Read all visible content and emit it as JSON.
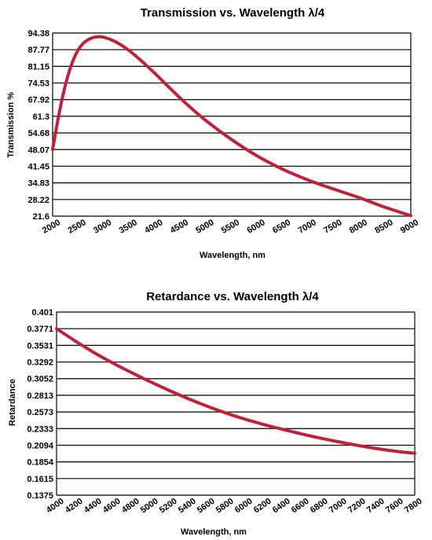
{
  "chart_data": [
    {
      "type": "line",
      "title": "Transmission vs. Wavelength λ/4",
      "xlabel": "Wavelength, nm",
      "ylabel": "Transmission %",
      "x_ticks": [
        "2000",
        "2500",
        "3000",
        "3500",
        "4000",
        "4500",
        "5000",
        "5500",
        "6000",
        "6500",
        "7000",
        "7500",
        "8000",
        "8500",
        "9000"
      ],
      "y_ticks": [
        "94.38",
        "87.77",
        "81.15",
        "74.53",
        "67.92",
        "61.3",
        "54.68",
        "48.07",
        "41.45",
        "34.83",
        "28.22",
        "21.6"
      ],
      "xlim": [
        2000,
        9000
      ],
      "ylim": [
        21.6,
        94.38
      ],
      "grid": "horizontal",
      "line_color": "#c0213a",
      "series": [
        {
          "x": [
            2000,
            2100,
            2200,
            2300,
            2400,
            2500,
            2600,
            2700,
            2800,
            2900,
            3000,
            3200,
            3400,
            3600,
            3800,
            4000,
            4300,
            4600,
            5000,
            5500,
            6000,
            6500,
            7000,
            7500,
            8000,
            8500,
            9000
          ],
          "values": [
            48.1,
            59.5,
            69.5,
            77.5,
            83.5,
            87.7,
            90.3,
            91.8,
            92.6,
            92.9,
            92.7,
            91.2,
            88.8,
            85.7,
            82.1,
            78.3,
            72.3,
            66.5,
            59.5,
            52.0,
            45.5,
            40.2,
            35.9,
            32.3,
            28.9,
            25.1,
            21.8
          ]
        }
      ]
    },
    {
      "type": "line",
      "title": "Retardance vs. Wavelength λ/4",
      "xlabel": "Wavelength, nm",
      "ylabel": "Retardance",
      "x_ticks": [
        "4000",
        "4200",
        "4400",
        "4600",
        "4800",
        "5000",
        "5200",
        "5400",
        "5600",
        "5800",
        "6000",
        "6200",
        "6400",
        "6600",
        "6800",
        "7000",
        "7200",
        "7400",
        "7600",
        "7800"
      ],
      "y_ticks": [
        "0.401",
        "0.3771",
        "0.3531",
        "0.3292",
        "0.3052",
        "0.2813",
        "0.2573",
        "0.2333",
        "0.2094",
        "0.1854",
        "0.1615",
        "0.1375"
      ],
      "xlim": [
        4000,
        7800
      ],
      "ylim": [
        0.1375,
        0.401
      ],
      "grid": "horizontal",
      "line_color": "#c0213a",
      "series": [
        {
          "x": [
            4000,
            4200,
            4400,
            4600,
            4800,
            5000,
            5200,
            5400,
            5600,
            5800,
            6000,
            6200,
            6400,
            6600,
            6800,
            7000,
            7200,
            7400,
            7600,
            7800
          ],
          "values": [
            0.3771,
            0.3592,
            0.3425,
            0.3274,
            0.3136,
            0.3004,
            0.2879,
            0.2762,
            0.2655,
            0.2556,
            0.2468,
            0.2391,
            0.2322,
            0.2257,
            0.2196,
            0.2141,
            0.209,
            0.2045,
            0.2007,
            0.1978
          ]
        }
      ]
    }
  ]
}
